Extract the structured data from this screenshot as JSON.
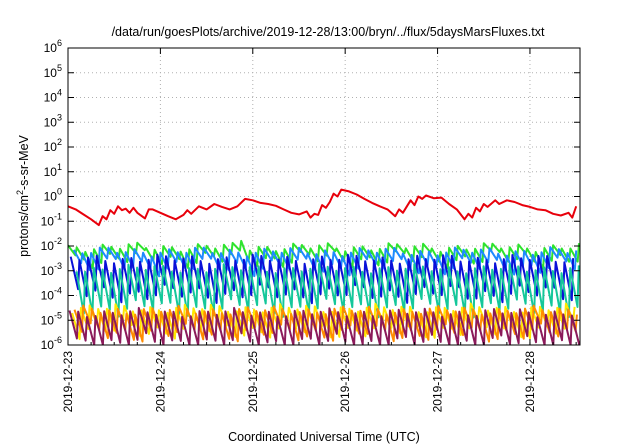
{
  "chart_data": {
    "type": "line",
    "title": "/data/run/goesPlots/archive/2019-12-28/13:00/bryn/../flux/5daysMarsFluxes.txt",
    "xlabel": "Coordinated Universal Time (UTC)",
    "ylabel": "protons/cm²-s-sr-MeV",
    "x_scale": "time",
    "y_scale": "log",
    "grid": true,
    "legend": "none",
    "xlim": [
      "2019-12-23T00:00",
      "2019-12-28T13:00"
    ],
    "ylim": [
      1e-06,
      1000000.0
    ],
    "x_ticks": [
      "2019-12-23",
      "2019-12-24",
      "2019-12-25",
      "2019-12-26",
      "2019-12-27",
      "2019-12-28"
    ],
    "y_ticks": [
      {
        "base": "10",
        "exp": "-6"
      },
      {
        "base": "10",
        "exp": "-5"
      },
      {
        "base": "10",
        "exp": "-4"
      },
      {
        "base": "10",
        "exp": "-3"
      },
      {
        "base": "10",
        "exp": "-2"
      },
      {
        "base": "10",
        "exp": "-1"
      },
      {
        "base": "10",
        "exp": "0"
      },
      {
        "base": "10",
        "exp": "1"
      },
      {
        "base": "10",
        "exp": "2"
      },
      {
        "base": "10",
        "exp": "3"
      },
      {
        "base": "10",
        "exp": "4"
      },
      {
        "base": "10",
        "exp": "5"
      },
      {
        "base": "10",
        "exp": "6"
      }
    ],
    "series": [
      {
        "color": "#e8000b",
        "values": [
          [
            "2019-12-23T00:00",
            0.4
          ],
          [
            "2019-12-23T02:00",
            0.3
          ],
          [
            "2019-12-23T04:00",
            0.19
          ],
          [
            "2019-12-23T06:00",
            0.12
          ],
          [
            "2019-12-23T08:00",
            0.07
          ],
          [
            "2019-12-23T09:00",
            0.16
          ],
          [
            "2019-12-23T10:00",
            0.12
          ],
          [
            "2019-12-23T11:00",
            0.28
          ],
          [
            "2019-12-23T12:00",
            0.2
          ],
          [
            "2019-12-23T13:00",
            0.4
          ],
          [
            "2019-12-23T14:00",
            0.28
          ],
          [
            "2019-12-23T15:00",
            0.32
          ],
          [
            "2019-12-23T16:00",
            0.22
          ],
          [
            "2019-12-23T17:00",
            0.35
          ],
          [
            "2019-12-23T18:00",
            0.22
          ],
          [
            "2019-12-23T20:00",
            0.13
          ],
          [
            "2019-12-23T21:00",
            0.3
          ],
          [
            "2019-12-23T22:00",
            0.3
          ],
          [
            "2019-12-24T00:00",
            0.22
          ],
          [
            "2019-12-24T02:00",
            0.16
          ],
          [
            "2019-12-24T04:00",
            0.12
          ],
          [
            "2019-12-24T06:00",
            0.18
          ],
          [
            "2019-12-24T07:00",
            0.28
          ],
          [
            "2019-12-24T08:00",
            0.2
          ],
          [
            "2019-12-24T10:00",
            0.4
          ],
          [
            "2019-12-24T12:00",
            0.3
          ],
          [
            "2019-12-24T14:00",
            0.5
          ],
          [
            "2019-12-24T16:00",
            0.38
          ],
          [
            "2019-12-24T18:00",
            0.3
          ],
          [
            "2019-12-24T20:00",
            0.4
          ],
          [
            "2019-12-24T22:00",
            0.8
          ],
          [
            "2019-12-25T00:00",
            0.7
          ],
          [
            "2019-12-25T02:00",
            0.55
          ],
          [
            "2019-12-25T04:00",
            0.5
          ],
          [
            "2019-12-25T06:00",
            0.42
          ],
          [
            "2019-12-25T08:00",
            0.3
          ],
          [
            "2019-12-25T10:00",
            0.22
          ],
          [
            "2019-12-25T12:00",
            0.19
          ],
          [
            "2019-12-25T14:00",
            0.25
          ],
          [
            "2019-12-25T15:00",
            0.14
          ],
          [
            "2019-12-25T16:00",
            0.2
          ],
          [
            "2019-12-25T17:00",
            0.18
          ],
          [
            "2019-12-25T18:00",
            0.45
          ],
          [
            "2019-12-25T19:00",
            0.35
          ],
          [
            "2019-12-25T20:00",
            0.6
          ],
          [
            "2019-12-25T21:00",
            1.3
          ],
          [
            "2019-12-25T22:00",
            1.0
          ],
          [
            "2019-12-25T23:00",
            1.9
          ],
          [
            "2019-12-26T01:00",
            1.6
          ],
          [
            "2019-12-26T03:00",
            1.2
          ],
          [
            "2019-12-26T05:00",
            0.8
          ],
          [
            "2019-12-26T07:00",
            0.55
          ],
          [
            "2019-12-26T09:00",
            0.4
          ],
          [
            "2019-12-26T11:00",
            0.3
          ],
          [
            "2019-12-26T13:00",
            0.16
          ],
          [
            "2019-12-26T14:00",
            0.3
          ],
          [
            "2019-12-26T15:00",
            0.22
          ],
          [
            "2019-12-26T17:00",
            0.7
          ],
          [
            "2019-12-26T18:00",
            0.45
          ],
          [
            "2019-12-26T19:00",
            1.0
          ],
          [
            "2019-12-26T20:00",
            0.8
          ],
          [
            "2019-12-26T21:00",
            1.1
          ],
          [
            "2019-12-26T23:00",
            0.85
          ],
          [
            "2019-12-27T01:00",
            0.9
          ],
          [
            "2019-12-27T03:00",
            0.5
          ],
          [
            "2019-12-27T05:00",
            0.3
          ],
          [
            "2019-12-27T07:00",
            0.12
          ],
          [
            "2019-12-27T08:00",
            0.2
          ],
          [
            "2019-12-27T09:00",
            0.14
          ],
          [
            "2019-12-27T10:00",
            0.35
          ],
          [
            "2019-12-27T11:00",
            0.25
          ],
          [
            "2019-12-27T12:00",
            0.5
          ],
          [
            "2019-12-27T13:00",
            0.38
          ],
          [
            "2019-12-27T15:00",
            0.7
          ],
          [
            "2019-12-27T16:00",
            0.5
          ],
          [
            "2019-12-27T18:00",
            0.7
          ],
          [
            "2019-12-27T20:00",
            0.6
          ],
          [
            "2019-12-27T22:00",
            0.45
          ],
          [
            "2019-12-28T00:00",
            0.38
          ],
          [
            "2019-12-28T02:00",
            0.3
          ],
          [
            "2019-12-28T04:00",
            0.28
          ],
          [
            "2019-12-28T06:00",
            0.2
          ],
          [
            "2019-12-28T08:00",
            0.17
          ],
          [
            "2019-12-28T10:00",
            0.22
          ],
          [
            "2019-12-28T11:00",
            0.14
          ],
          [
            "2019-12-28T12:00",
            0.4
          ]
        ]
      },
      {
        "color": "#2ee32e",
        "base": 0.009,
        "trough": 0.003,
        "offset_h": 0,
        "peaks": [
          [
            "2019-12-24T22:00",
            0.016
          ]
        ]
      },
      {
        "color": "#1e8aff",
        "base": 0.006,
        "trough": 0.0015,
        "offset_h": 1.5,
        "peaks": []
      },
      {
        "color": "#0a10d8",
        "base": 0.003,
        "trough": 0.00012,
        "offset_h": 0.7,
        "peaks": []
      },
      {
        "color": "#14c79a",
        "base": 0.0012,
        "trough": 3e-05,
        "offset_h": 2.2,
        "peaks": []
      },
      {
        "color": "#ffe800",
        "base": 3e-05,
        "trough": 4e-06,
        "offset_h": 1.1,
        "peaks": []
      },
      {
        "color": "#ff8c00",
        "base": 2.5e-05,
        "trough": 3e-06,
        "offset_h": 1.7,
        "peaks": []
      },
      {
        "color": "#8b1a5a",
        "base": 2e-05,
        "trough": 1.2e-06,
        "offset_h": 0.4,
        "peaks": []
      }
    ]
  }
}
